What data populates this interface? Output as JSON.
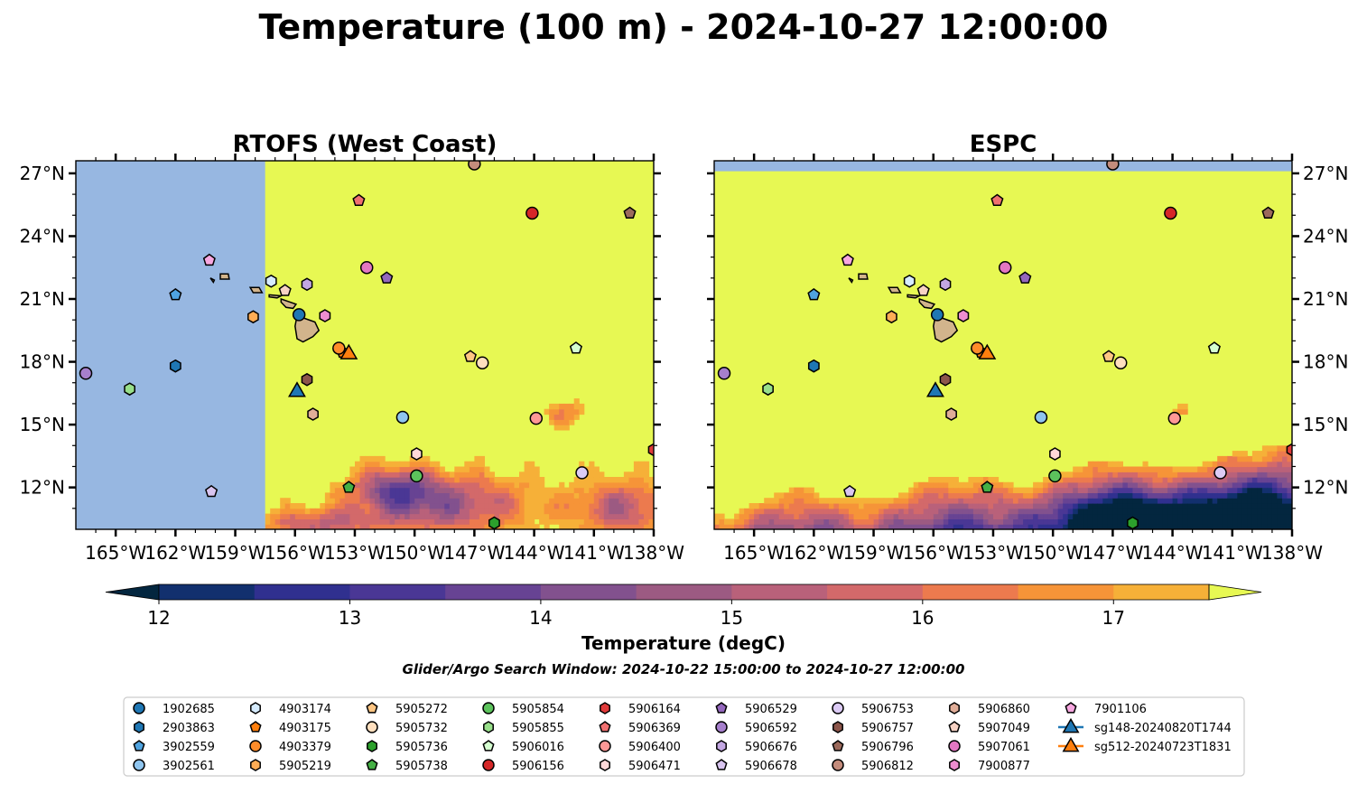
{
  "title": "Temperature (100 m) - 2024-10-27 12:00:00",
  "chart_data": {
    "type": "heatmap",
    "panels": [
      {
        "title": "RTOFS (West Coast)",
        "domain_west_lon": -157.5
      },
      {
        "title": "ESPC"
      }
    ],
    "xlim": [
      -167,
      -138
    ],
    "ylim": [
      10,
      27.6
    ],
    "xticks": [
      {
        "lon": -165,
        "label": "165°W"
      },
      {
        "lon": -162,
        "label": "162°W"
      },
      {
        "lon": -159,
        "label": "159°W"
      },
      {
        "lon": -156,
        "label": "156°W"
      },
      {
        "lon": -153,
        "label": "153°W"
      },
      {
        "lon": -150,
        "label": "150°W"
      },
      {
        "lon": -147,
        "label": "147°W"
      },
      {
        "lon": -144,
        "label": "144°W"
      },
      {
        "lon": -141,
        "label": "141°W"
      },
      {
        "lon": -138,
        "label": "138°W"
      }
    ],
    "yticks": [
      {
        "lat": 12,
        "label": "12°N"
      },
      {
        "lat": 15,
        "label": "15°N"
      },
      {
        "lat": 18,
        "label": "18°N"
      },
      {
        "lat": 21,
        "label": "21°N"
      },
      {
        "lat": 24,
        "label": "24°N"
      },
      {
        "lat": 27,
        "label": "27°N"
      }
    ],
    "colorbar": {
      "label": "Temperature (degC)",
      "min": 12,
      "max": 17.5,
      "step": 0.5,
      "ticks": [
        {
          "value": 12,
          "label": "12"
        },
        {
          "value": 13,
          "label": "13"
        },
        {
          "value": 14,
          "label": "14"
        },
        {
          "value": 15,
          "label": "15"
        },
        {
          "value": 16,
          "label": "16"
        },
        {
          "value": 17,
          "label": "17"
        }
      ],
      "colors": [
        "#03263f",
        "#12306e",
        "#30308f",
        "#4a3795",
        "#674393",
        "#82518e",
        "#9c5a82",
        "#b9617a",
        "#d3696a",
        "#ec7a4e",
        "#f69438",
        "#f6b038",
        "#f6cc40",
        "#e7f853"
      ],
      "extend": "both"
    },
    "colors": {
      "ocean_mask": "#97b7e1",
      "land": "#d2b48c",
      "warm": "#e7f853"
    },
    "legend_position": "bottom"
  },
  "search_window": "Glider/Argo Search Window: 2024-10-22 15:00:00 to 2024-10-27 12:00:00",
  "legend": {
    "columns": [
      [
        {
          "label": "1902685",
          "color": "#1f77b4",
          "marker": "circle",
          "lon": -155.8,
          "lat": 20.25
        },
        {
          "label": "2903863",
          "color": "#1f77b4",
          "marker": "hexagon",
          "lon": -162.0,
          "lat": 17.8
        },
        {
          "label": "3902559",
          "color": "#4fa3e0",
          "marker": "pentagon",
          "lon": -162.0,
          "lat": 21.2
        },
        {
          "label": "3902561",
          "color": "#8fc5ef",
          "marker": "circle",
          "lon": -150.6,
          "lat": 15.35
        }
      ],
      [
        {
          "label": "4903174",
          "color": "#d6ecff",
          "marker": "hexagon",
          "lon": -157.2,
          "lat": 21.85
        },
        {
          "label": "4903175",
          "color": "#ff7f0e",
          "marker": "pentagon",
          "lon": -153.6,
          "lat": 18.45
        },
        {
          "label": "4903379",
          "color": "#ff8c2a",
          "marker": "circle",
          "lon": -153.8,
          "lat": 18.65
        },
        {
          "label": "5905219",
          "color": "#ffad55",
          "marker": "hexagon",
          "lon": -158.1,
          "lat": 20.15
        }
      ],
      [
        {
          "label": "5905272",
          "color": "#ffc683",
          "marker": "pentagon",
          "lon": -147.2,
          "lat": 18.25
        },
        {
          "label": "5905732",
          "color": "#ffdfbe",
          "marker": "circle",
          "lon": -146.6,
          "lat": 17.95
        },
        {
          "label": "5905736",
          "color": "#2ca02c",
          "marker": "hexagon",
          "lon": -146.0,
          "lat": 10.3
        },
        {
          "label": "5905738",
          "color": "#45b045",
          "marker": "pentagon",
          "lon": -153.3,
          "lat": 12.0
        }
      ],
      [
        {
          "label": "5905854",
          "color": "#5cc35c",
          "marker": "circle",
          "lon": -149.9,
          "lat": 12.55
        },
        {
          "label": "5905855",
          "color": "#98df8a",
          "marker": "hexagon",
          "lon": -164.3,
          "lat": 16.7
        },
        {
          "label": "5906016",
          "color": "#d5ffd0",
          "marker": "pentagon",
          "lon": -141.9,
          "lat": 18.65
        },
        {
          "label": "5906156",
          "color": "#d62728",
          "marker": "circle",
          "lon": -144.1,
          "lat": 25.1
        }
      ],
      [
        {
          "label": "5906164",
          "color": "#e03a3a",
          "marker": "hexagon",
          "lon": -138.0,
          "lat": 13.8
        },
        {
          "label": "5906369",
          "color": "#f07070",
          "marker": "pentagon",
          "lon": -152.8,
          "lat": 25.7
        },
        {
          "label": "5906400",
          "color": "#ff9896",
          "marker": "circle",
          "lon": -143.9,
          "lat": 15.3
        },
        {
          "label": "5906471",
          "color": "#ffd8d8",
          "marker": "hexagon",
          "lon": -149.9,
          "lat": 13.6
        }
      ],
      [
        {
          "label": "5906529",
          "color": "#9467bd",
          "marker": "pentagon",
          "lon": -151.4,
          "lat": 22.0
        },
        {
          "label": "5906592",
          "color": "#a67fcc",
          "marker": "circle",
          "lon": -166.5,
          "lat": 17.45
        },
        {
          "label": "5906676",
          "color": "#c3a7e2",
          "marker": "hexagon",
          "lon": -155.4,
          "lat": 21.7
        },
        {
          "label": "5906678",
          "color": "#d9c5f0",
          "marker": "pentagon",
          "lon": -160.2,
          "lat": 11.8
        }
      ],
      [
        {
          "label": "5906753",
          "color": "#dccbf5",
          "marker": "circle",
          "lon": -141.6,
          "lat": 12.7
        },
        {
          "label": "5906757",
          "color": "#8c564b",
          "marker": "hexagon",
          "lon": -155.4,
          "lat": 17.15
        },
        {
          "label": "5906796",
          "color": "#9c6a5c",
          "marker": "pentagon",
          "lon": -139.2,
          "lat": 25.1
        },
        {
          "label": "5906812",
          "color": "#c48c7c",
          "marker": "circle",
          "lon": -147.0,
          "lat": 27.45
        }
      ],
      [
        {
          "label": "5906860",
          "color": "#e0ad98",
          "marker": "hexagon",
          "lon": -155.1,
          "lat": 15.5
        },
        {
          "label": "5907049",
          "color": "#f7d2c4",
          "marker": "pentagon",
          "lon": -156.5,
          "lat": 21.4
        },
        {
          "label": "5907061",
          "color": "#e377c2",
          "marker": "circle",
          "lon": -152.4,
          "lat": 22.5
        },
        {
          "label": "7900877",
          "color": "#ed8dd0",
          "marker": "hexagon",
          "lon": -154.5,
          "lat": 20.2
        }
      ],
      [
        {
          "label": "7901106",
          "color": "#f7a7e0",
          "marker": "pentagon",
          "lon": -160.3,
          "lat": 22.85
        },
        {
          "label": "sg148-20240820T1744",
          "color": "#1f77b4",
          "marker": "triangle",
          "lon": -155.9,
          "lat": 16.65
        },
        {
          "label": "sg512-20240723T1831",
          "color": "#ff7f0e",
          "marker": "triangle",
          "lon": -153.3,
          "lat": 18.45
        }
      ]
    ]
  }
}
